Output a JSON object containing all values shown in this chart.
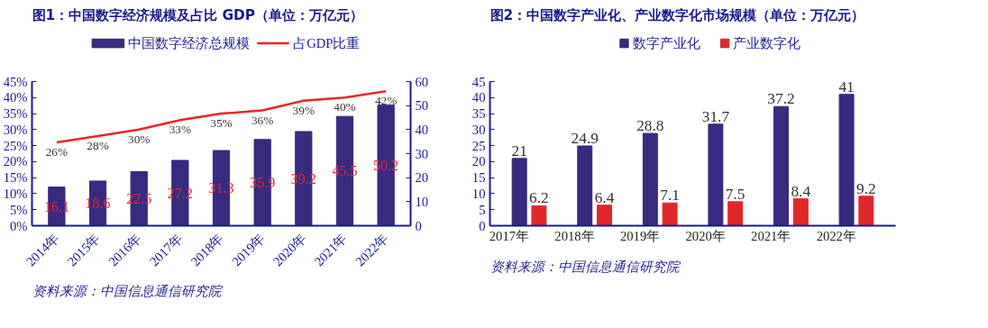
{
  "chart_data": [
    {
      "type": "bar",
      "title": "图1：中国数字经济规模及占比 GDP（单位：万亿元）",
      "categories": [
        "2014年",
        "2015年",
        "2016年",
        "2017年",
        "2018年",
        "2019年",
        "2020年",
        "2021年",
        "2022年"
      ],
      "series": [
        {
          "name": "中国数字经济总规模",
          "color": "#372a7f",
          "axis": "y2",
          "values": [
            16.1,
            18.6,
            22.5,
            27.2,
            31.3,
            35.9,
            39.2,
            45.5,
            50.2
          ]
        },
        {
          "name": "占GDP比重",
          "type": "line",
          "color": "#e8262a",
          "axis": "y",
          "values": [
            26,
            28,
            30,
            33,
            35,
            36,
            39,
            40,
            42
          ],
          "value_labels": [
            "26%",
            "28%",
            "30%",
            "33%",
            "35%",
            "36%",
            "39%",
            "40%",
            "42%"
          ]
        }
      ],
      "ylim": [
        0,
        45
      ],
      "yticks": [
        {
          "value": 0,
          "label": "0%"
        },
        {
          "value": 5,
          "label": "5%"
        },
        {
          "value": 10,
          "label": "10%"
        },
        {
          "value": 15,
          "label": "15%"
        },
        {
          "value": 20,
          "label": "20%"
        },
        {
          "value": 25,
          "label": "25%"
        },
        {
          "value": 30,
          "label": "30%"
        },
        {
          "value": 35,
          "label": "35%"
        },
        {
          "value": 40,
          "label": "40%"
        },
        {
          "value": 45,
          "label": "45%"
        }
      ],
      "y2lim": [
        0,
        60
      ],
      "y2ticks": [
        0,
        10,
        20,
        30,
        40,
        50,
        60
      ],
      "data_labels": true,
      "legend": "top",
      "grid": false,
      "annotations": [
        "资料来源：中国信息通信研究院"
      ]
    },
    {
      "type": "bar",
      "title": "图2：中国数字产业化、产业数字化市场规模（单位：万亿元）",
      "categories": [
        "2017年",
        "2018年",
        "2019年",
        "2020年",
        "2021年",
        "2022年"
      ],
      "series": [
        {
          "name": "数字产业化",
          "color": "#372a7f",
          "values": [
            21,
            24.9,
            28.8,
            31.7,
            37.2,
            41
          ]
        },
        {
          "name": "产业数字化",
          "color": "#e0282a",
          "values": [
            6.2,
            6.4,
            7.1,
            7.5,
            8.4,
            9.2
          ]
        }
      ],
      "ylim": [
        0,
        45
      ],
      "yticks": [
        0,
        5,
        10,
        15,
        20,
        25,
        30,
        35,
        40,
        45
      ],
      "data_labels": true,
      "legend": "top",
      "grid": false,
      "annotations": [
        "资料来源：中国信息通信研究院"
      ]
    }
  ]
}
